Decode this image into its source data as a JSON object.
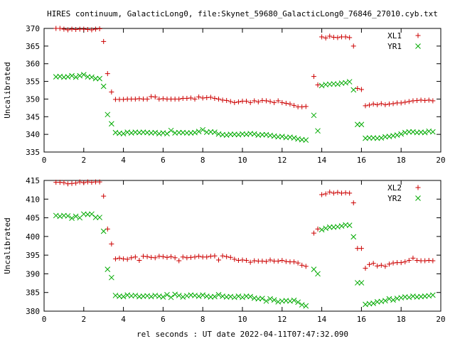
{
  "chart_data": [
    {
      "type": "scatter",
      "title": "HIRES continuum, GalacticLong0, file:Skynet_59680_GalacticLong0_76846_27010.cyb.txt",
      "xlabel": "",
      "ylabel": "Uncalibrated",
      "xlim": [
        0,
        20
      ],
      "ylim": [
        335,
        370
      ],
      "xticks": [
        0,
        2,
        4,
        6,
        8,
        10,
        12,
        14,
        16,
        18,
        20
      ],
      "yticks": [
        335,
        340,
        345,
        350,
        355,
        360,
        365,
        370
      ],
      "grid": false,
      "legend_position": "top-right",
      "x": [
        0.6,
        0.8,
        1.0,
        1.2,
        1.4,
        1.6,
        1.8,
        2.0,
        2.2,
        2.4,
        2.6,
        2.8,
        3.0,
        3.2,
        3.4,
        3.6,
        3.8,
        4.0,
        4.2,
        4.4,
        4.6,
        4.8,
        5.0,
        5.2,
        5.4,
        5.6,
        5.8,
        6.0,
        6.2,
        6.4,
        6.6,
        6.8,
        7.0,
        7.2,
        7.4,
        7.6,
        7.8,
        8.0,
        8.2,
        8.4,
        8.6,
        8.8,
        9.0,
        9.2,
        9.4,
        9.6,
        9.8,
        10.0,
        10.2,
        10.4,
        10.6,
        10.8,
        11.0,
        11.2,
        11.4,
        11.6,
        11.8,
        12.0,
        12.2,
        12.4,
        12.6,
        12.8,
        13.0,
        13.2,
        13.6,
        13.8,
        14.0,
        14.2,
        14.4,
        14.6,
        14.8,
        15.0,
        15.2,
        15.4,
        15.6,
        15.8,
        16.0,
        16.2,
        16.4,
        16.6,
        16.8,
        17.0,
        17.2,
        17.4,
        17.6,
        17.8,
        18.0,
        18.2,
        18.4,
        18.6,
        18.8,
        19.0,
        19.2,
        19.4,
        19.6
      ],
      "series": [
        {
          "name": "XL1",
          "color": "#cc0000",
          "marker": "plus",
          "values": [
            370.0,
            370.0,
            369.8,
            369.6,
            369.8,
            369.7,
            369.8,
            369.8,
            369.7,
            369.6,
            369.8,
            369.9,
            366.3,
            357.2,
            352.0,
            349.9,
            349.9,
            349.9,
            350.0,
            350.0,
            350.0,
            350.1,
            350.0,
            350.0,
            350.7,
            350.6,
            350.0,
            350.1,
            350.0,
            350.0,
            350.0,
            350.0,
            350.2,
            350.2,
            350.3,
            350.0,
            350.6,
            350.3,
            350.4,
            350.5,
            350.2,
            350.0,
            349.7,
            349.6,
            349.3,
            349.0,
            349.2,
            349.4,
            349.4,
            349.0,
            349.5,
            349.2,
            349.6,
            349.5,
            349.3,
            349.0,
            349.5,
            349.0,
            348.8,
            348.6,
            348.2,
            347.8,
            347.8,
            347.9,
            356.4,
            354.0,
            367.6,
            367.3,
            367.8,
            367.5,
            367.4,
            367.6,
            367.6,
            367.4,
            365.0,
            353.0,
            352.7,
            348.1,
            348.3,
            348.6,
            348.4,
            348.7,
            348.4,
            348.6,
            348.7,
            348.9,
            348.9,
            349.1,
            349.3,
            349.5,
            349.6,
            349.7,
            349.6,
            349.7,
            349.5
          ]
        },
        {
          "name": "YR1",
          "color": "#00aa00",
          "marker": "cross",
          "values": [
            356.3,
            356.4,
            356.2,
            356.3,
            356.6,
            356.2,
            356.6,
            356.9,
            356.3,
            356.2,
            355.8,
            355.8,
            353.6,
            345.6,
            343.0,
            340.5,
            340.3,
            340.2,
            340.6,
            340.4,
            340.6,
            340.5,
            340.6,
            340.5,
            340.4,
            340.5,
            340.2,
            340.4,
            340.2,
            341.1,
            340.4,
            340.5,
            340.5,
            340.4,
            340.4,
            340.5,
            340.8,
            341.3,
            340.6,
            340.7,
            340.6,
            340.1,
            339.9,
            339.8,
            340.0,
            340.0,
            339.9,
            340.1,
            340.0,
            340.2,
            340.1,
            339.8,
            339.9,
            339.9,
            339.7,
            339.5,
            339.3,
            339.4,
            339.1,
            339.2,
            339.0,
            338.7,
            338.5,
            338.4,
            345.4,
            341.0,
            353.8,
            354.1,
            354.2,
            354.3,
            354.2,
            354.5,
            354.6,
            354.9,
            352.6,
            342.8,
            342.8,
            338.9,
            339.0,
            339.0,
            338.9,
            339.0,
            339.3,
            339.4,
            339.6,
            339.8,
            340.1,
            340.5,
            340.7,
            340.7,
            340.5,
            340.6,
            340.5,
            340.9,
            340.7
          ]
        }
      ]
    },
    {
      "type": "scatter",
      "title": "",
      "xlabel": "rel seconds : UT date 2022-04-11T07:47:32.090",
      "ylabel": "Uncalibrated",
      "xlim": [
        0,
        20
      ],
      "ylim": [
        380,
        415
      ],
      "xticks": [
        0,
        2,
        4,
        6,
        8,
        10,
        12,
        14,
        16,
        18,
        20
      ],
      "yticks": [
        380,
        385,
        390,
        395,
        400,
        405,
        410,
        415
      ],
      "grid": false,
      "legend_position": "top-right",
      "x": [
        0.6,
        0.8,
        1.0,
        1.2,
        1.4,
        1.6,
        1.8,
        2.0,
        2.2,
        2.4,
        2.6,
        2.8,
        3.0,
        3.2,
        3.4,
        3.6,
        3.8,
        4.0,
        4.2,
        4.4,
        4.6,
        4.8,
        5.0,
        5.2,
        5.4,
        5.6,
        5.8,
        6.0,
        6.2,
        6.4,
        6.6,
        6.8,
        7.0,
        7.2,
        7.4,
        7.6,
        7.8,
        8.0,
        8.2,
        8.4,
        8.6,
        8.8,
        9.0,
        9.2,
        9.4,
        9.6,
        9.8,
        10.0,
        10.2,
        10.4,
        10.6,
        10.8,
        11.0,
        11.2,
        11.4,
        11.6,
        11.8,
        12.0,
        12.2,
        12.4,
        12.6,
        12.8,
        13.0,
        13.2,
        13.6,
        13.8,
        14.0,
        14.2,
        14.4,
        14.6,
        14.8,
        15.0,
        15.2,
        15.4,
        15.6,
        15.8,
        16.0,
        16.2,
        16.4,
        16.6,
        16.8,
        17.0,
        17.2,
        17.4,
        17.6,
        17.8,
        18.0,
        18.2,
        18.4,
        18.6,
        18.8,
        19.0,
        19.2,
        19.4,
        19.6
      ],
      "series": [
        {
          "name": "XL2",
          "color": "#cc0000",
          "marker": "plus",
          "values": [
            414.5,
            414.5,
            414.4,
            414.1,
            414.2,
            414.3,
            414.6,
            414.4,
            414.6,
            414.5,
            414.6,
            414.6,
            410.8,
            402.0,
            398.0,
            394.0,
            394.2,
            394.0,
            393.9,
            394.3,
            394.5,
            393.6,
            394.7,
            394.6,
            394.4,
            394.3,
            394.7,
            394.6,
            394.4,
            394.6,
            394.3,
            393.5,
            394.5,
            394.3,
            394.4,
            394.5,
            394.7,
            394.5,
            394.5,
            394.7,
            394.8,
            393.7,
            394.8,
            394.6,
            394.4,
            393.9,
            393.6,
            393.7,
            393.6,
            393.1,
            393.5,
            393.4,
            393.4,
            393.3,
            393.7,
            393.4,
            393.4,
            393.6,
            393.3,
            393.2,
            393.2,
            392.9,
            392.3,
            392.0,
            400.9,
            402.0,
            411.2,
            411.4,
            411.9,
            411.6,
            411.8,
            411.6,
            411.7,
            411.6,
            409.0,
            396.8,
            396.8,
            391.5,
            392.5,
            392.8,
            392.1,
            392.3,
            392.0,
            392.6,
            392.9,
            393.0,
            393.0,
            393.2,
            393.6,
            394.2,
            393.6,
            393.5,
            393.5,
            393.6,
            393.5
          ]
        },
        {
          "name": "YR2",
          "color": "#00aa00",
          "marker": "cross",
          "values": [
            405.6,
            405.4,
            405.6,
            405.5,
            404.9,
            405.4,
            405.0,
            406.0,
            405.9,
            406.0,
            405.1,
            405.1,
            401.4,
            391.2,
            389.0,
            384.2,
            384.0,
            383.9,
            384.3,
            384.1,
            384.2,
            383.9,
            384.0,
            384.1,
            383.9,
            384.2,
            384.0,
            383.8,
            384.4,
            383.7,
            384.5,
            384.2,
            383.8,
            384.1,
            384.3,
            384.2,
            384.0,
            384.3,
            384.0,
            383.8,
            383.9,
            384.4,
            384.0,
            383.8,
            383.9,
            383.7,
            384.0,
            383.7,
            384.0,
            383.9,
            383.5,
            383.3,
            383.4,
            382.7,
            383.3,
            383.0,
            382.5,
            382.7,
            382.8,
            382.7,
            382.9,
            382.4,
            381.7,
            381.4,
            391.2,
            390.0,
            401.8,
            402.2,
            402.5,
            402.5,
            402.6,
            402.8,
            403.1,
            403.0,
            399.9,
            387.6,
            387.6,
            381.8,
            382.0,
            382.1,
            382.5,
            382.6,
            382.8,
            383.3,
            383.0,
            383.4,
            383.6,
            383.8,
            383.7,
            384.0,
            383.8,
            383.9,
            384.0,
            384.1,
            384.3
          ]
        }
      ]
    }
  ]
}
